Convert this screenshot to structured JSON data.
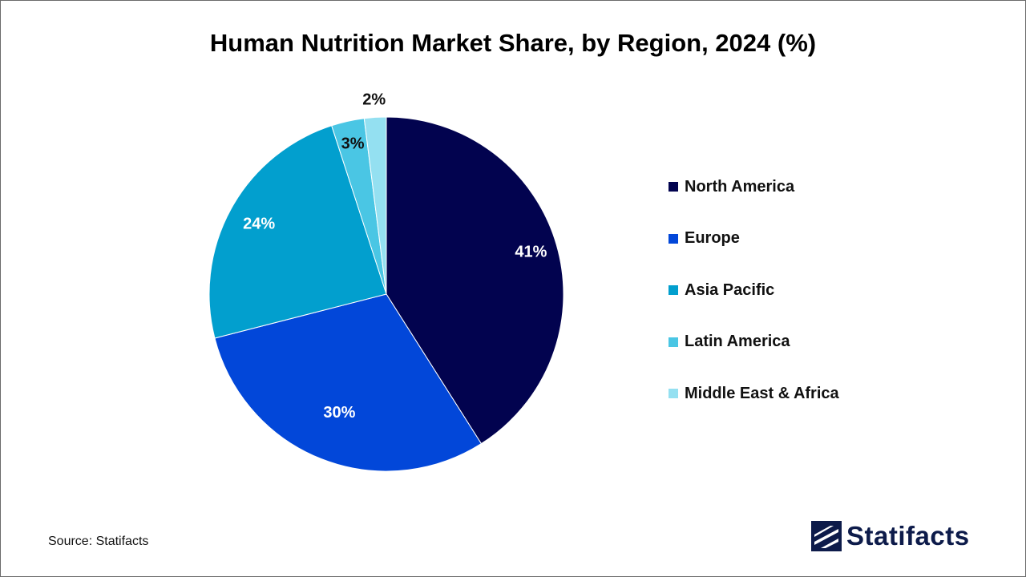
{
  "chart_data": {
    "type": "pie",
    "title": "Human Nutrition Market Share, by Region, 2024 (%)",
    "unit": "%",
    "start_angle_deg": 0,
    "direction": "clockwise",
    "legend_position": "right",
    "slices": [
      {
        "name": "North America",
        "value": 41,
        "label": "41%",
        "color": "#02034f",
        "label_color": "#ffffff"
      },
      {
        "name": "Europe",
        "value": 30,
        "label": "30%",
        "color": "#0247d9",
        "label_color": "#ffffff"
      },
      {
        "name": "Asia Pacific",
        "value": 24,
        "label": "24%",
        "color": "#029fce",
        "label_color": "#ffffff"
      },
      {
        "name": "Latin America",
        "value": 3,
        "label": "3%",
        "color": "#4ac6e4",
        "label_color": "#111111"
      },
      {
        "name": "Middle East & Africa",
        "value": 2,
        "label": "2%",
        "color": "#94e0f1",
        "label_color": "#111111"
      }
    ]
  },
  "footer": {
    "source": "Source: Statifacts",
    "brand": "Statifacts"
  },
  "colors": {
    "brand": "#0d1b4a"
  }
}
